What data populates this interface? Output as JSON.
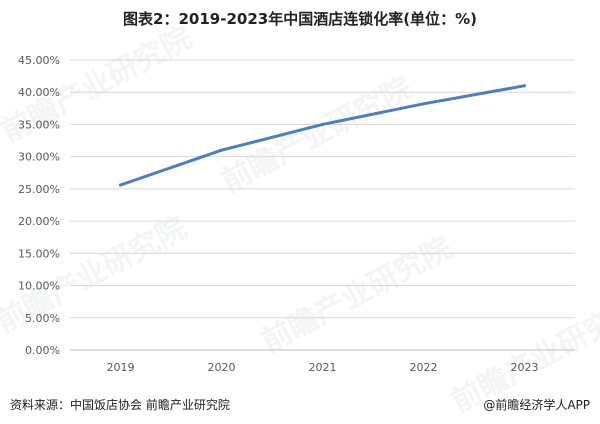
{
  "header": {
    "title": "图表2：2019-2023年中国酒店连锁化率(单位：%)"
  },
  "footer": {
    "source": "资料来源：中国饭店协会 前瞻产业研究院",
    "brand": "@前瞻经济学人APP"
  },
  "watermark": {
    "text": "前瞻产业研究院"
  },
  "colors": {
    "line": "#4a7ec7",
    "grid": "#d9d9d9",
    "axis": "#bfbfbf"
  },
  "chart_data": {
    "type": "line",
    "title": "图表2：2019-2023年中国酒店连锁化率(单位：%)",
    "xlabel": "",
    "ylabel": "",
    "categories": [
      "2019",
      "2020",
      "2021",
      "2022",
      "2023"
    ],
    "series": [
      {
        "values": [
          25.6,
          31.0,
          35.0,
          38.2,
          41.0
        ]
      }
    ],
    "ylim": [
      0,
      45
    ],
    "ytick_step": 5,
    "ytick_labels": [
      "0.00%",
      "5.00%",
      "10.00%",
      "15.00%",
      "20.00%",
      "25.00%",
      "30.00%",
      "35.00%",
      "40.00%",
      "45.00%"
    ],
    "grid": true,
    "legend": "none"
  }
}
